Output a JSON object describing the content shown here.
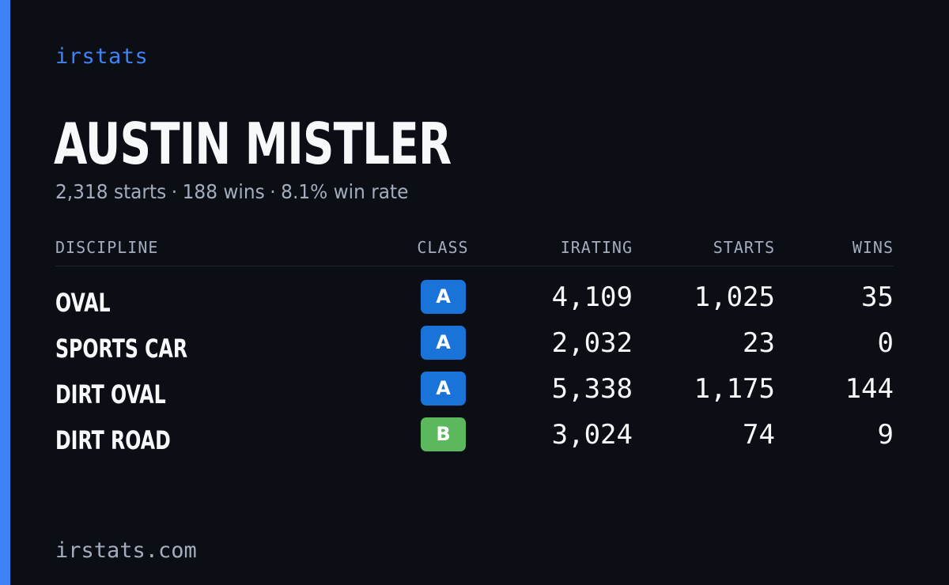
{
  "brand": "irstats",
  "driver": {
    "name": "AUSTIN MISTLER",
    "starts": "2,318 starts",
    "wins": "188 wins",
    "win_rate": "8.1% win rate",
    "separator": "·"
  },
  "table": {
    "headers": {
      "discipline": "DISCIPLINE",
      "class": "CLASS",
      "irating": "IRATING",
      "starts": "STARTS",
      "wins": "WINS"
    },
    "rows": [
      {
        "discipline": "OVAL",
        "class": "A",
        "class_color": "#1a73d9",
        "irating": "4,109",
        "starts": "1,025",
        "wins": "35"
      },
      {
        "discipline": "SPORTS CAR",
        "class": "A",
        "class_color": "#1a73d9",
        "irating": "2,032",
        "starts": "23",
        "wins": "0"
      },
      {
        "discipline": "DIRT OVAL",
        "class": "A",
        "class_color": "#1a73d9",
        "irating": "5,338",
        "starts": "1,175",
        "wins": "144"
      },
      {
        "discipline": "DIRT ROAD",
        "class": "B",
        "class_color": "#5cb85c",
        "irating": "3,024",
        "starts": "74",
        "wins": "9"
      }
    ]
  },
  "footer": "irstats.com",
  "colors": {
    "background": "#0b0e14",
    "accent": "#3f82f5",
    "muted_text": "#a3adbd",
    "class_a": "#1a73d9",
    "class_b": "#5cb85c"
  }
}
